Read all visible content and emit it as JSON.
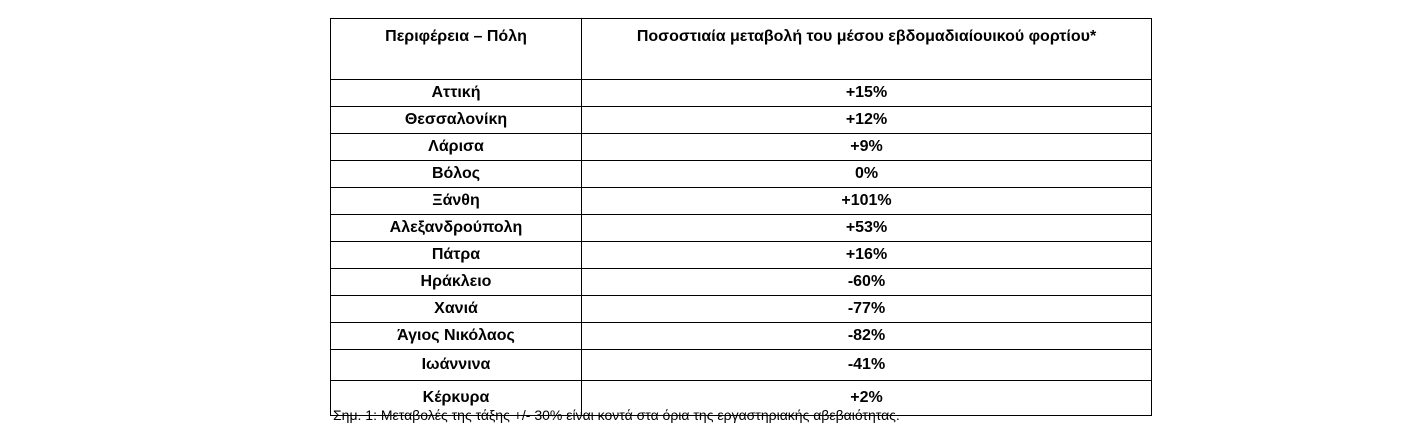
{
  "table": {
    "header": [
      "Περιφέρεια – Πόλη",
      "Ποσοστιαία μεταβολή του μέσου εβδομαδιαίουικού φορτίου*"
    ],
    "rows": [
      [
        "Αττική",
        "+15%"
      ],
      [
        "Θεσσαλονίκη",
        "+12%"
      ],
      [
        "Λάρισα",
        "+9%"
      ],
      [
        "Βόλος",
        "0%"
      ],
      [
        "Ξάνθη",
        "+101%"
      ],
      [
        "Αλεξανδρούπολη",
        "+53%"
      ],
      [
        "Πάτρα",
        "+16%"
      ],
      [
        "Ηράκλειο",
        "-60%"
      ],
      [
        "Χανιά",
        "-77%"
      ],
      [
        "Άγιος Νικόλαος",
        "-82%"
      ],
      [
        "Ιωάννινα",
        "-41%"
      ],
      [
        "Κέρκυρα",
        "+2%"
      ]
    ]
  },
  "note": "Σημ. 1: Μεταβολές της τάξης +/- 30% είναι κοντά στα όρια της εργαστηριακής αβεβαιότητας."
}
